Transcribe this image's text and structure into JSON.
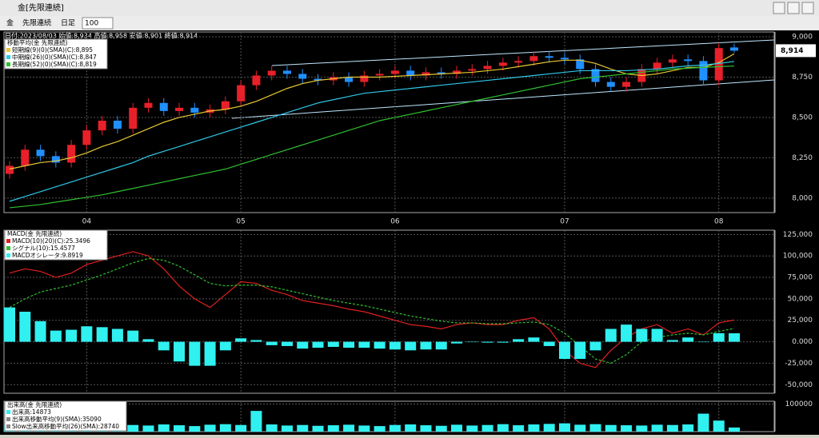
{
  "window": {
    "title": "金[先限連続]"
  },
  "toolbar": {
    "symbol": "金",
    "contract": "先限連続",
    "period": "日足",
    "count": "100"
  },
  "header": "日付:2023/08/03 始値:8,934 高値:8,958 安値:8,901 終値:8,914",
  "chart_data": [
    {
      "type": "candlestick",
      "legend_title": "移動平均(金 先限連続)",
      "categories": [
        null,
        null,
        null,
        null,
        null,
        "04",
        null,
        null,
        null,
        null,
        null,
        null,
        null,
        null,
        null,
        "05",
        null,
        null,
        null,
        null,
        null,
        null,
        null,
        null,
        null,
        "06",
        null,
        null,
        null,
        null,
        null,
        null,
        null,
        null,
        null,
        null,
        "07",
        null,
        null,
        null,
        null,
        null,
        null,
        null,
        null,
        null,
        "08",
        null
      ],
      "open": [
        8150,
        8200,
        8300,
        8260,
        8220,
        8330,
        8420,
        8480,
        8430,
        8560,
        8590,
        8540,
        8560,
        8530,
        8550,
        8600,
        8700,
        8760,
        8790,
        8770,
        8740,
        8730,
        8750,
        8720,
        8760,
        8770,
        8790,
        8760,
        8780,
        8770,
        8790,
        8800,
        8820,
        8840,
        8850,
        8880,
        8870,
        8860,
        8800,
        8720,
        8690,
        8720,
        8800,
        8840,
        8860,
        8850,
        8730,
        8934
      ],
      "high": [
        8230,
        8330,
        8330,
        8290,
        8360,
        8450,
        8510,
        8510,
        8590,
        8620,
        8620,
        8590,
        8590,
        8580,
        8630,
        8730,
        8790,
        8820,
        8820,
        8800,
        8770,
        8780,
        8780,
        8790,
        8800,
        8820,
        8820,
        8810,
        8810,
        8820,
        8830,
        8850,
        8870,
        8880,
        8910,
        8910,
        8900,
        8890,
        8830,
        8750,
        8750,
        8830,
        8870,
        8890,
        8890,
        8880,
        8960,
        8958
      ],
      "low": [
        8120,
        8170,
        8230,
        8190,
        8190,
        8300,
        8390,
        8400,
        8400,
        8530,
        8510,
        8510,
        8500,
        8500,
        8520,
        8570,
        8670,
        8730,
        8740,
        8710,
        8700,
        8700,
        8690,
        8690,
        8730,
        8740,
        8730,
        8730,
        8740,
        8740,
        8760,
        8770,
        8790,
        8810,
        8820,
        8840,
        8830,
        8770,
        8690,
        8660,
        8660,
        8690,
        8770,
        8810,
        8820,
        8700,
        8700,
        8901
      ],
      "close": [
        8200,
        8300,
        8260,
        8220,
        8330,
        8420,
        8480,
        8430,
        8560,
        8590,
        8540,
        8560,
        8530,
        8550,
        8600,
        8700,
        8760,
        8790,
        8770,
        8740,
        8730,
        8750,
        8720,
        8760,
        8770,
        8790,
        8760,
        8780,
        8770,
        8790,
        8800,
        8820,
        8840,
        8850,
        8880,
        8870,
        8860,
        8800,
        8720,
        8690,
        8720,
        8800,
        8840,
        8860,
        8850,
        8730,
        8930,
        8914
      ],
      "up_color": "#e8202a",
      "down_color": "#2090ff",
      "series": [
        {
          "name": "短期線(9)(0)(SMA)(C):8,895",
          "color": "#e8c832",
          "values": [
            8180,
            8200,
            8220,
            8230,
            8250,
            8280,
            8320,
            8350,
            8390,
            8430,
            8470,
            8500,
            8520,
            8540,
            8550,
            8570,
            8600,
            8640,
            8680,
            8710,
            8730,
            8740,
            8750,
            8750,
            8750,
            8755,
            8760,
            8765,
            8770,
            8775,
            8780,
            8790,
            8800,
            8815,
            8830,
            8845,
            8855,
            8855,
            8835,
            8800,
            8770,
            8760,
            8770,
            8790,
            8810,
            8810,
            8840,
            8895
          ]
        },
        {
          "name": "中期線(26)(0)(SMA)(C):8,847",
          "color": "#30c8e8",
          "values": [
            7980,
            8010,
            8040,
            8070,
            8100,
            8130,
            8160,
            8190,
            8220,
            8260,
            8290,
            8320,
            8350,
            8380,
            8410,
            8440,
            8470,
            8500,
            8530,
            8560,
            8590,
            8610,
            8630,
            8650,
            8660,
            8670,
            8680,
            8690,
            8700,
            8710,
            8720,
            8730,
            8740,
            8750,
            8760,
            8770,
            8780,
            8790,
            8790,
            8790,
            8790,
            8795,
            8800,
            8810,
            8820,
            8825,
            8835,
            8847
          ]
        },
        {
          "name": "長期線(52)(0)(SMA)(C):8,819",
          "color": "#30c030",
          "values": [
            7940,
            7950,
            7960,
            7975,
            7990,
            8005,
            8020,
            8040,
            8060,
            8080,
            8100,
            8120,
            8140,
            8160,
            8180,
            8210,
            8240,
            8270,
            8300,
            8330,
            8360,
            8390,
            8420,
            8450,
            8480,
            8500,
            8520,
            8540,
            8560,
            8580,
            8600,
            8620,
            8640,
            8660,
            8680,
            8700,
            8720,
            8740,
            8750,
            8760,
            8770,
            8780,
            8790,
            8800,
            8805,
            8810,
            8815,
            8819
          ]
        }
      ],
      "ylim": [
        7910,
        9030
      ],
      "yticks": [
        {
          "value": 9000,
          "label": "9,000"
        },
        {
          "value": 8750,
          "label": "8,750"
        },
        {
          "value": 8500,
          "label": "8,500"
        },
        {
          "value": 8250,
          "label": "8,250"
        },
        {
          "value": 8000,
          "label": "8,000"
        }
      ],
      "last_label": "8,914",
      "grid": true
    },
    {
      "type": "macd",
      "legend_title": "MACD(金 先限連続)",
      "series": [
        {
          "name": "MACD(10)(20)(C):25.3496",
          "color": "#e02020",
          "style": "line",
          "values": [
            80000,
            85000,
            82000,
            75000,
            80000,
            90000,
            95000,
            100000,
            105000,
            100000,
            85000,
            65000,
            50000,
            40000,
            55000,
            70000,
            68000,
            60000,
            55000,
            48000,
            45000,
            42000,
            38000,
            35000,
            30000,
            25000,
            20000,
            18000,
            15000,
            20000,
            22000,
            20000,
            20000,
            25000,
            28000,
            15000,
            -10000,
            -25000,
            -30000,
            -10000,
            5000,
            15000,
            20000,
            10000,
            15000,
            8000,
            22000,
            25350
          ]
        },
        {
          "name": "シグナル(10):15.4577",
          "color": "#30c030",
          "style": "dashed",
          "values": [
            40000,
            50000,
            58000,
            62000,
            66000,
            72000,
            78000,
            85000,
            92000,
            97000,
            95000,
            88000,
            78000,
            68000,
            65000,
            66000,
            66000,
            64000,
            60000,
            56000,
            52000,
            48000,
            45000,
            42000,
            38000,
            34000,
            30000,
            27000,
            24000,
            22000,
            22000,
            21000,
            21000,
            22000,
            23000,
            20000,
            10000,
            -5000,
            -20000,
            -25000,
            -15000,
            0,
            5000,
            8000,
            10000,
            8000,
            12000,
            15458
          ]
        },
        {
          "name": "MACDオシレータ:9.8919",
          "color": "#30f0f0",
          "style": "bar",
          "values": [
            40000,
            35000,
            24000,
            13000,
            14000,
            18000,
            17000,
            15000,
            13000,
            3000,
            -10000,
            -23000,
            -28000,
            -28000,
            -10000,
            4000,
            2000,
            -4000,
            -5000,
            -8000,
            -7000,
            -6000,
            -7000,
            -7000,
            -8000,
            -9000,
            -10000,
            -9000,
            -9000,
            -2000,
            0,
            -1000,
            -1000,
            3000,
            5000,
            -5000,
            -20000,
            -20000,
            -10000,
            15000,
            20000,
            15000,
            15000,
            2000,
            5000,
            0,
            10000,
            9892
          ]
        }
      ],
      "ylim": [
        -60000,
        130000
      ],
      "yticks": [
        {
          "value": 125000,
          "label": "125,000"
        },
        {
          "value": 100000,
          "label": "100,000"
        },
        {
          "value": 75000,
          "label": "75,000"
        },
        {
          "value": 50000,
          "label": "50,000"
        },
        {
          "value": 25000,
          "label": "25,000"
        },
        {
          "value": 0,
          "label": "0.000"
        },
        {
          "value": -25000,
          "label": "-25,000"
        },
        {
          "value": -50000,
          "label": "-50,000"
        }
      ],
      "grid": true
    },
    {
      "type": "volume",
      "legend_title": "出来高(金 先限連続)",
      "series": [
        {
          "name": "出来高:14873",
          "color": "#30f0f0",
          "style": "bar",
          "values": [
            22000,
            24000,
            20000,
            26000,
            23000,
            25000,
            21000,
            28000,
            24000,
            22000,
            26000,
            23000,
            20000,
            25000,
            27000,
            24000,
            75000,
            26000,
            22000,
            24000,
            21000,
            23000,
            25000,
            22000,
            20000,
            24000,
            26000,
            23000,
            21000,
            25000,
            22000,
            24000,
            27000,
            23000,
            26000,
            28000,
            30000,
            25000,
            27000,
            24000,
            23000,
            22000,
            25000,
            24000,
            26000,
            65000,
            40000,
            14873
          ]
        }
      ],
      "legend_items": [
        "出来高移動平均(9)(SMA):35090",
        "Slow出来高移動平均(26)(SMA):28740"
      ],
      "ylim": [
        0,
        110000
      ],
      "yticks": [
        100000
      ],
      "grid": true
    }
  ]
}
